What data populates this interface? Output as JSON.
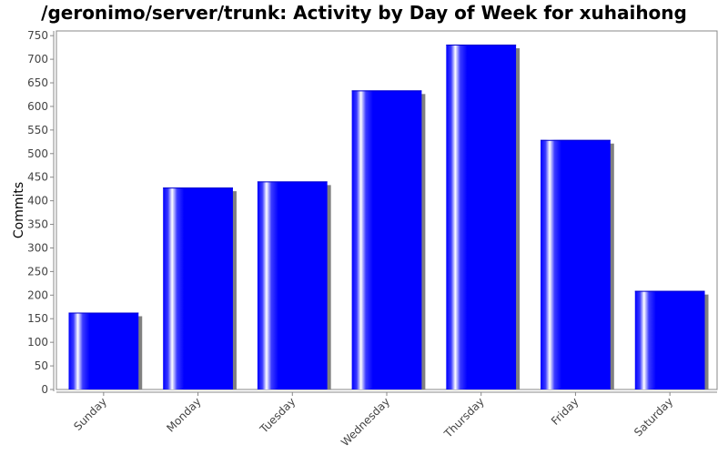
{
  "chart_data": {
    "type": "bar",
    "title": "/geronimo/server/trunk: Activity by Day of Week for xuhaihong",
    "xlabel": "",
    "ylabel": "Commits",
    "categories": [
      "Sunday",
      "Monday",
      "Tuesday",
      "Wednesday",
      "Thursday",
      "Friday",
      "Saturday"
    ],
    "values": [
      163,
      428,
      441,
      634,
      731,
      529,
      209
    ],
    "ylim": [
      0,
      760
    ],
    "yticks": [
      0,
      50,
      100,
      150,
      200,
      250,
      300,
      350,
      400,
      450,
      500,
      550,
      600,
      650,
      700,
      750
    ],
    "grid": false,
    "legend": "none",
    "colors": {
      "bar": "#0000ff",
      "highlight": "#ffffff",
      "shadow": "#808080"
    }
  }
}
